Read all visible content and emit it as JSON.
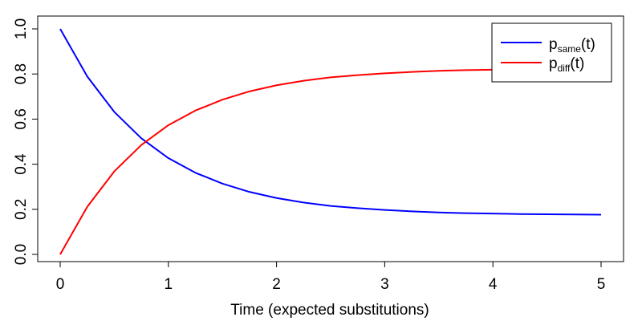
{
  "chart_data": {
    "type": "line",
    "title": "",
    "xlabel": "Time (expected substitutions)",
    "ylabel": "",
    "xlim": [
      0,
      5
    ],
    "ylim": [
      0,
      1
    ],
    "x_ticks": [
      0,
      1,
      2,
      3,
      4,
      5
    ],
    "x_tick_labels": [
      "0",
      "1",
      "2",
      "3",
      "4",
      "5"
    ],
    "y_ticks": [
      0,
      0.2,
      0.4,
      0.6,
      0.8,
      1.0
    ],
    "y_tick_labels": [
      "0.0",
      "0.2",
      "0.4",
      "0.6",
      "0.8",
      "1.0"
    ],
    "grid": false,
    "legend_position": "top-right",
    "x": [
      0,
      0.25,
      0.5,
      0.75,
      1,
      1.25,
      1.5,
      1.75,
      2,
      2.25,
      2.5,
      2.75,
      3,
      3.25,
      3.5,
      3.75,
      4,
      4.25,
      4.5,
      4.75,
      5
    ],
    "series": [
      {
        "name": "p_same(t)",
        "legend_main": "p",
        "legend_sub": "same",
        "legend_tail": "(t)",
        "color": "#0000ff",
        "values": [
          1.0,
          0.789,
          0.632,
          0.515,
          0.427,
          0.362,
          0.314,
          0.277,
          0.25,
          0.23,
          0.215,
          0.205,
          0.197,
          0.191,
          0.186,
          0.183,
          0.181,
          0.179,
          0.178,
          0.177,
          0.176
        ]
      },
      {
        "name": "p_diff(t)",
        "legend_main": "p",
        "legend_sub": "diff",
        "legend_tail": "(t)",
        "color": "#ff0000",
        "values": [
          0.0,
          0.211,
          0.368,
          0.485,
          0.573,
          0.638,
          0.686,
          0.723,
          0.75,
          0.77,
          0.785,
          0.795,
          0.803,
          0.809,
          0.814,
          0.817,
          0.819,
          0.821,
          0.822,
          0.823,
          0.824
        ]
      }
    ]
  }
}
